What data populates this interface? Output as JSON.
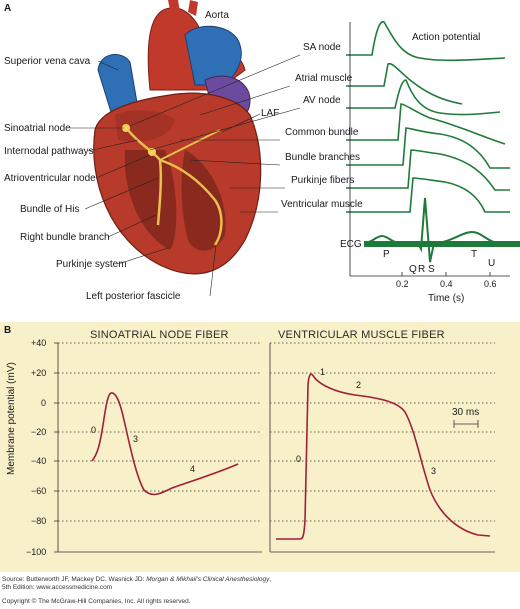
{
  "panel_a": {
    "letter": "A",
    "aorta_label": "Aorta",
    "left_labels": [
      "Superior vena cava",
      "Sinoatrial node",
      "Internodal pathways",
      "Atrioventricular node",
      "Bundle of His",
      "Right bundle branch",
      "Purkinje system",
      "Left posterior fascicle"
    ],
    "laf_label": "LAF",
    "trace_labels": [
      "SA node",
      "Atrial muscle",
      "AV node",
      "Common bundle",
      "Bundle branches",
      "Purkinje fibers",
      "Ventricular muscle"
    ],
    "action_potential_label": "Action potential",
    "ecg_label": "ECG",
    "ecg_waves": [
      "P",
      "Q",
      "R",
      "S",
      "T",
      "U"
    ],
    "time_ticks": [
      "0.2",
      "0.4",
      "0.6"
    ],
    "time_axis_label": "Time (s)",
    "colors": {
      "trace": "#1f7a3a",
      "heart_red": "#b83a2b",
      "vessel_blue": "#2f6fb5",
      "node_yellow": "#e8c04a"
    }
  },
  "panel_b": {
    "letter": "B",
    "background": "#f8f0c8",
    "curve_color": "#a0203a",
    "y_axis_label": "Membrane potential (mV)",
    "y_ticks": [
      "+40",
      "+20",
      "0",
      "−20",
      "−40",
      "−60",
      "−80",
      "−100"
    ],
    "sa_title": "SINOATRIAL NODE FIBER",
    "vent_title": "VENTRICULAR MUSCLE FIBER",
    "sa_phase_labels": [
      "0",
      "3",
      "4"
    ],
    "vent_phase_labels": [
      "0",
      "1",
      "2",
      "3"
    ],
    "scale_bar_label": "30 ms"
  },
  "footer": {
    "source_prefix": "Source: Butterworth JF, Mackey DC, Wasnick JD: ",
    "source_title": "Morgan & Mikhail's Clinical Anesthesiology",
    "source_suffix": ",",
    "edition": "5th Edition: www.accessmedicine.com",
    "copyright": "Copyright © The McGraw-Hill Companies, Inc. All rights reserved."
  }
}
